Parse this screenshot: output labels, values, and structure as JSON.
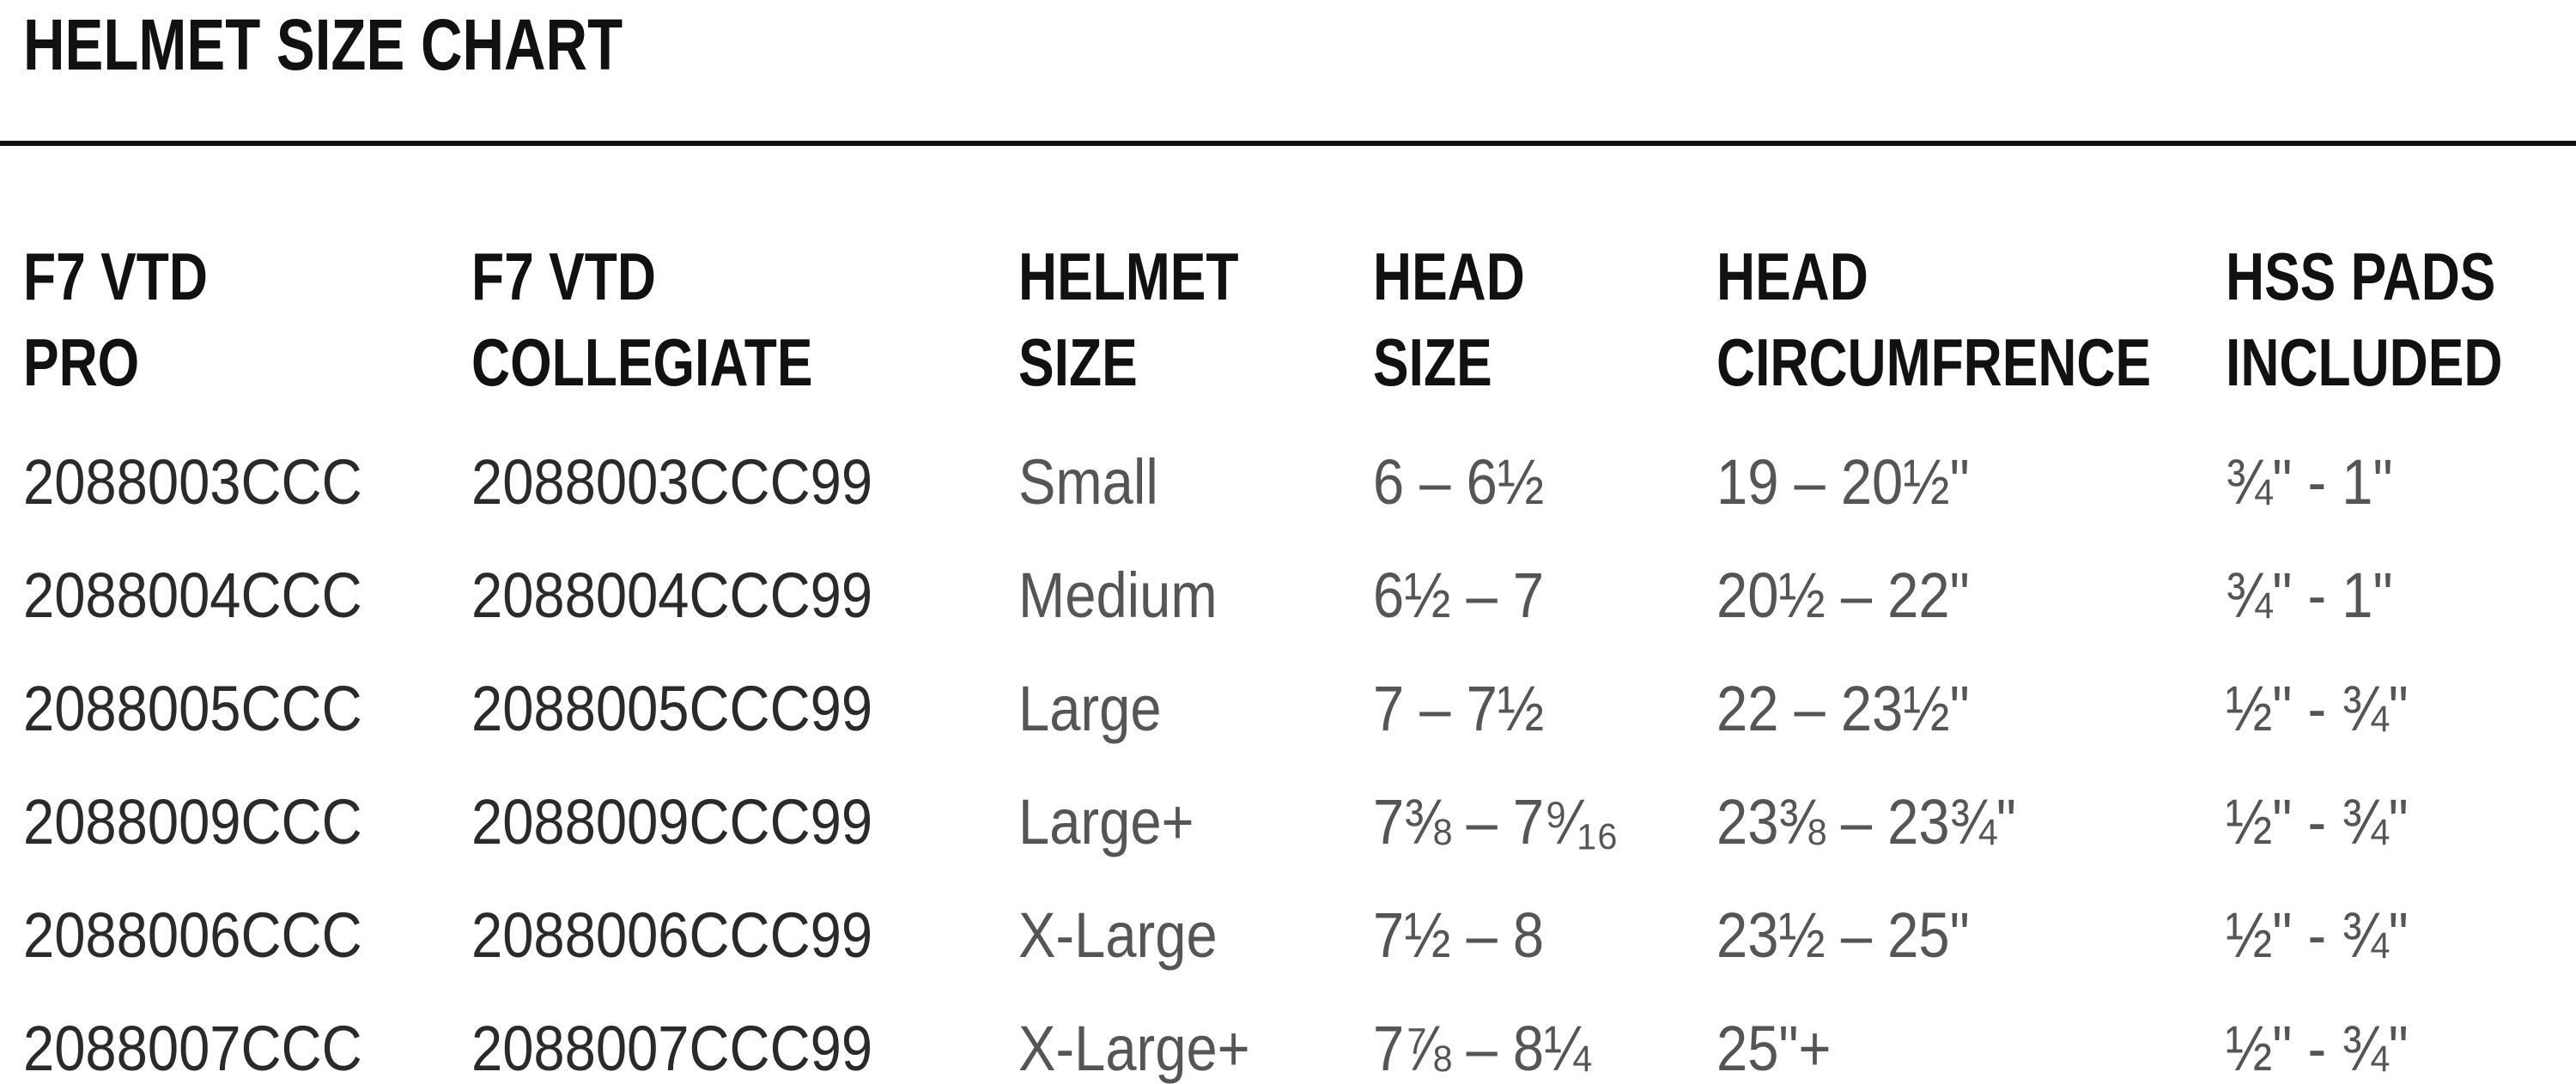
{
  "title": "HELMET SIZE CHART",
  "headers": [
    [
      "F7 VTD",
      "PRO"
    ],
    [
      "F7 VTD",
      "COLLEGIATE"
    ],
    [
      "HELMET",
      "SIZE"
    ],
    [
      "HEAD",
      "SIZE"
    ],
    [
      "HEAD",
      "CIRCUMFRENCE"
    ],
    [
      "HSS PADS",
      "INCLUDED"
    ]
  ],
  "rows": [
    [
      "2088003CCC",
      "2088003CCC99",
      "Small",
      "6 – 6½",
      "19 – 20½\"",
      "¾\"  -  1\""
    ],
    [
      "2088004CCC",
      "2088004CCC99",
      "Medium",
      "6½ – 7",
      "20½ – 22\"",
      "¾\"  -  1\""
    ],
    [
      "2088005CCC",
      "2088005CCC99",
      "Large",
      "7 – 7½",
      "22 – 23½\"",
      "½\"  -  ¾\""
    ],
    [
      "2088009CCC",
      "2088009CCC99",
      "Large+",
      "7⅜ – 7⁹⁄₁₆",
      "23⅜ – 23¾\"",
      "½\"  -  ¾\""
    ],
    [
      "2088006CCC",
      "2088006CCC99",
      "X-Large",
      "7½ – 8",
      "23½ – 25\"",
      "½\"  -  ¾\""
    ],
    [
      "2088007CCC",
      "2088007CCC99",
      "X-Large+",
      "7⅞ – 8¼",
      "25\"+",
      "½\"  -  ¾\""
    ]
  ]
}
